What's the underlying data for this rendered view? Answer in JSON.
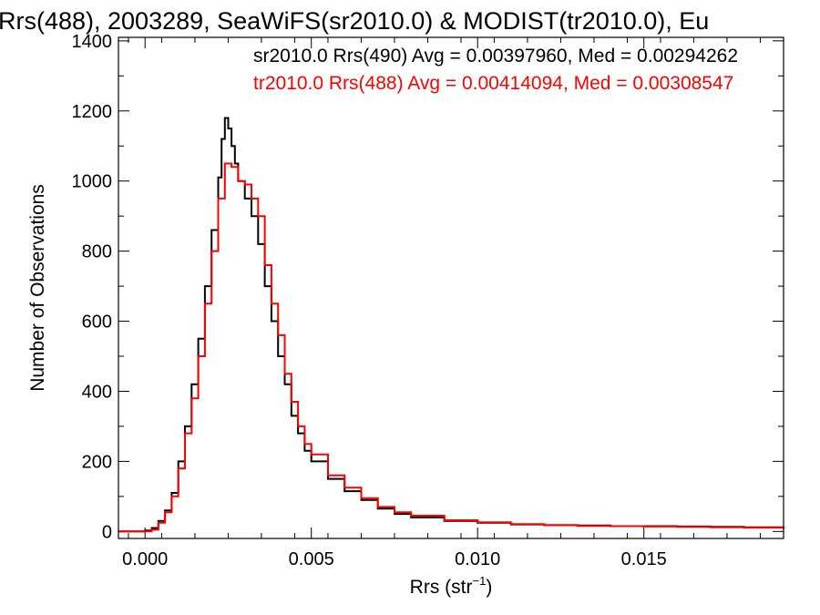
{
  "chart_data": {
    "type": "line",
    "title": "Rrs(488), 2003289, SeaWiFS(sr2010.0) & MODIST(tr2010.0), Eu",
    "xlabel": "Rrs (str",
    "xlabel_sup": "−1",
    "xlabel_close": ")",
    "ylabel": "Number of Observations",
    "xlim": [
      -0.0008,
      0.0192
    ],
    "ylim": [
      -20,
      1410
    ],
    "x_ticks": [
      {
        "value": 0.0,
        "label": "0.000"
      },
      {
        "value": 0.005,
        "label": "0.005"
      },
      {
        "value": 0.01,
        "label": "0.010"
      },
      {
        "value": 0.015,
        "label": "0.015"
      }
    ],
    "y_ticks": [
      {
        "value": 0,
        "label": "0"
      },
      {
        "value": 200,
        "label": "200"
      },
      {
        "value": 400,
        "label": "400"
      },
      {
        "value": 600,
        "label": "600"
      },
      {
        "value": 800,
        "label": "800"
      },
      {
        "value": 1000,
        "label": "1000"
      },
      {
        "value": 1200,
        "label": "1200"
      },
      {
        "value": 1400,
        "label": "1400"
      }
    ],
    "series": [
      {
        "name": "sr2010.0 Rrs(490)",
        "legend_text": "sr2010.0 Rrs(490) Avg = 0.00397960, Med = 0.00294262",
        "color": "#000000",
        "points": [
          [
            -0.0008,
            0
          ],
          [
            -0.0002,
            0
          ],
          [
            0.0,
            3
          ],
          [
            0.0002,
            10
          ],
          [
            0.0004,
            30
          ],
          [
            0.0006,
            60
          ],
          [
            0.0008,
            110
          ],
          [
            0.001,
            200
          ],
          [
            0.0012,
            300
          ],
          [
            0.0014,
            420
          ],
          [
            0.0016,
            550
          ],
          [
            0.0018,
            700
          ],
          [
            0.002,
            860
          ],
          [
            0.0022,
            1010
          ],
          [
            0.0023,
            1120
          ],
          [
            0.0024,
            1180
          ],
          [
            0.0025,
            1150
          ],
          [
            0.0026,
            1100
          ],
          [
            0.0027,
            1050
          ],
          [
            0.0028,
            1000
          ],
          [
            0.003,
            950
          ],
          [
            0.0032,
            900
          ],
          [
            0.0034,
            820
          ],
          [
            0.0036,
            700
          ],
          [
            0.0038,
            600
          ],
          [
            0.004,
            500
          ],
          [
            0.0042,
            420
          ],
          [
            0.0044,
            330
          ],
          [
            0.0046,
            280
          ],
          [
            0.0048,
            230
          ],
          [
            0.005,
            200
          ],
          [
            0.0055,
            150
          ],
          [
            0.006,
            115
          ],
          [
            0.0065,
            90
          ],
          [
            0.007,
            65
          ],
          [
            0.0075,
            50
          ],
          [
            0.008,
            40
          ],
          [
            0.009,
            30
          ],
          [
            0.01,
            25
          ],
          [
            0.011,
            20
          ],
          [
            0.012,
            18
          ],
          [
            0.013,
            17
          ],
          [
            0.014,
            15
          ],
          [
            0.015,
            15
          ],
          [
            0.016,
            14
          ],
          [
            0.017,
            13
          ],
          [
            0.018,
            12
          ],
          [
            0.0192,
            8
          ]
        ]
      },
      {
        "name": "tr2010.0 Rrs(488)",
        "legend_text": "tr2010.0 Rrs(488) Avg = 0.00414094, Med = 0.00308547",
        "color": "#ff0000",
        "points": [
          [
            -0.0008,
            0
          ],
          [
            0.0,
            0
          ],
          [
            0.0002,
            5
          ],
          [
            0.0004,
            25
          ],
          [
            0.0006,
            55
          ],
          [
            0.0008,
            100
          ],
          [
            0.001,
            180
          ],
          [
            0.0012,
            280
          ],
          [
            0.0014,
            380
          ],
          [
            0.0016,
            500
          ],
          [
            0.0018,
            650
          ],
          [
            0.002,
            800
          ],
          [
            0.0022,
            950
          ],
          [
            0.0024,
            1050
          ],
          [
            0.0026,
            1040
          ],
          [
            0.0028,
            1000
          ],
          [
            0.003,
            990
          ],
          [
            0.0032,
            950
          ],
          [
            0.0034,
            900
          ],
          [
            0.0036,
            760
          ],
          [
            0.0038,
            650
          ],
          [
            0.004,
            560
          ],
          [
            0.0042,
            450
          ],
          [
            0.0044,
            370
          ],
          [
            0.0046,
            300
          ],
          [
            0.0048,
            250
          ],
          [
            0.005,
            220
          ],
          [
            0.0055,
            160
          ],
          [
            0.006,
            125
          ],
          [
            0.0065,
            95
          ],
          [
            0.007,
            70
          ],
          [
            0.0075,
            55
          ],
          [
            0.008,
            45
          ],
          [
            0.009,
            32
          ],
          [
            0.01,
            26
          ],
          [
            0.011,
            21
          ],
          [
            0.012,
            18
          ],
          [
            0.013,
            16
          ],
          [
            0.014,
            15
          ],
          [
            0.015,
            14
          ],
          [
            0.016,
            13
          ],
          [
            0.017,
            12
          ],
          [
            0.018,
            11
          ],
          [
            0.0192,
            8
          ]
        ]
      }
    ],
    "legend_placement": "top-right",
    "grid": false
  }
}
